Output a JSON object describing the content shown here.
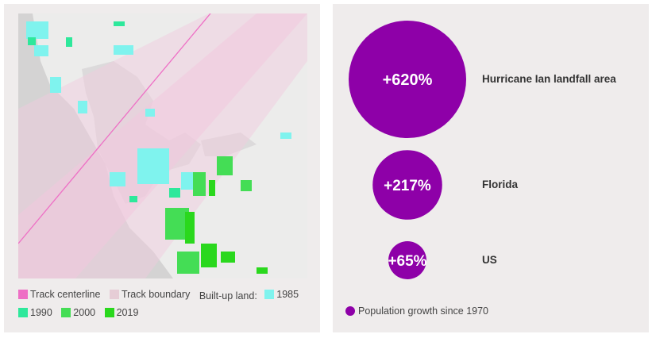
{
  "colors": {
    "accent": "#8e00a8",
    "track_centerline": "#ee6fc5",
    "track_boundary": "#e6cdd6",
    "y1985": "#7ff3ee",
    "y1990": "#2ee89b",
    "y2000": "#44dd55",
    "y2019": "#2ad81d"
  },
  "map_legend": {
    "track_centerline": "Track centerline",
    "track_boundary": "Track boundary",
    "built_up_label": "Built-up land:",
    "y1985": "1985",
    "y1990": "1990",
    "y2000": "2000",
    "y2019": "2019"
  },
  "chart_data": {
    "type": "bubble",
    "title": "",
    "legend": "Population growth since 1970",
    "series": [
      {
        "label": "Hurricane Ian landfall area",
        "value": 620,
        "value_label": "+620%"
      },
      {
        "label": "Florida",
        "value": 217,
        "value_label": "+217%"
      },
      {
        "label": "US",
        "value": 65,
        "value_label": "+65%"
      }
    ]
  }
}
